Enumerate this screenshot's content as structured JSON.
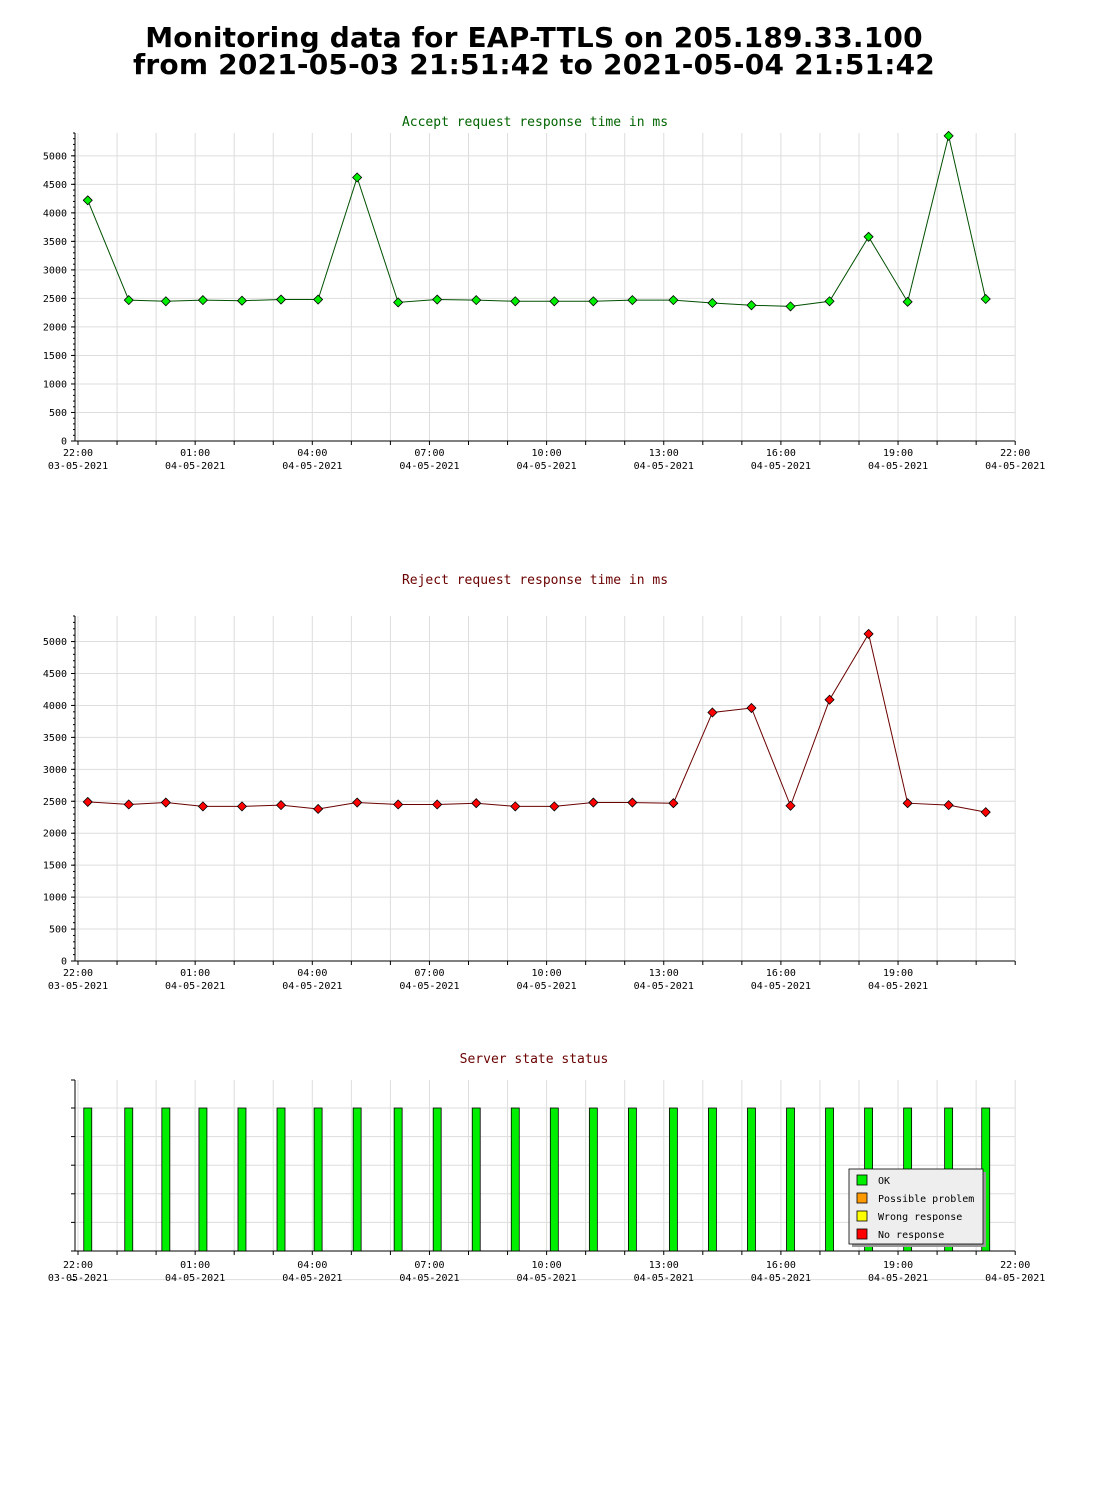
{
  "page": {
    "title_line1": "Monitoring data for EAP-TTLS on 205.189.33.100",
    "title_line2": "from 2021-05-03 21:51:42 to 2021-05-04 21:51:42"
  },
  "colors": {
    "accept_title": "#006400",
    "reject_title": "#6b0000",
    "status_title": "#6b0000",
    "accept_line": "#005000",
    "reject_line": "#6b0000",
    "ok": "#00ee00",
    "possible_problem": "#ff9900",
    "wrong_response": "#ffff00",
    "no_response": "#ff0000",
    "grid": "#dddddd"
  },
  "x_axis": {
    "tick_labels": [
      {
        "time": "22:00",
        "date": "03-05-2021"
      },
      {
        "time": "01:00",
        "date": "04-05-2021"
      },
      {
        "time": "04:00",
        "date": "04-05-2021"
      },
      {
        "time": "07:00",
        "date": "04-05-2021"
      },
      {
        "time": "10:00",
        "date": "04-05-2021"
      },
      {
        "time": "13:00",
        "date": "04-05-2021"
      },
      {
        "time": "16:00",
        "date": "04-05-2021"
      },
      {
        "time": "19:00",
        "date": "04-05-2021"
      },
      {
        "time": "22:00",
        "date": "04-05-2021"
      }
    ]
  },
  "chart_data": [
    {
      "type": "line",
      "title": "Accept request response time in ms",
      "ylim": [
        0,
        5400
      ],
      "yticks": [
        0,
        500,
        1000,
        1500,
        2000,
        2500,
        3000,
        3500,
        4000,
        4500,
        5000
      ],
      "grid": true,
      "x_hours": [
        0.25,
        1.3,
        2.25,
        3.2,
        4.2,
        5.2,
        6.15,
        7.15,
        8.2,
        9.2,
        10.2,
        11.2,
        12.2,
        13.2,
        14.2,
        15.25,
        16.25,
        17.25,
        18.25,
        19.25,
        20.25,
        21.25,
        22.3,
        23.25
      ],
      "values": [
        4220,
        2470,
        2450,
        2470,
        2460,
        2480,
        2480,
        4620,
        2430,
        2480,
        2470,
        2450,
        2450,
        2450,
        2470,
        2470,
        2420,
        2380,
        2360,
        2450,
        3580,
        2440,
        5350,
        2490
      ]
    },
    {
      "type": "line",
      "title": "Reject request response time in ms",
      "ylim": [
        0,
        5400
      ],
      "yticks": [
        0,
        500,
        1000,
        1500,
        2000,
        2500,
        3000,
        3500,
        4000,
        4500,
        5000
      ],
      "grid": true,
      "x_hours": [
        0.25,
        1.3,
        2.25,
        3.2,
        4.2,
        5.2,
        6.15,
        7.15,
        8.2,
        9.2,
        10.2,
        11.2,
        12.2,
        13.2,
        14.2,
        15.25,
        16.25,
        17.25,
        18.25,
        19.25,
        20.25,
        21.25,
        22.3,
        23.25
      ],
      "values": [
        2490,
        2450,
        2480,
        2420,
        2420,
        2440,
        2380,
        2480,
        2450,
        2450,
        2470,
        2420,
        2420,
        2480,
        2480,
        2470,
        3890,
        3960,
        2430,
        4090,
        5120,
        2470,
        2440,
        2330
      ]
    },
    {
      "type": "bar",
      "title": "Server state status",
      "x_hours": [
        0.25,
        1.3,
        2.25,
        3.2,
        4.2,
        5.2,
        6.15,
        7.15,
        8.2,
        9.2,
        10.2,
        11.2,
        12.2,
        13.2,
        14.2,
        15.25,
        16.25,
        17.25,
        18.25,
        19.25,
        20.25,
        21.25,
        22.3,
        23.25
      ],
      "states": [
        "OK",
        "OK",
        "OK",
        "OK",
        "OK",
        "OK",
        "OK",
        "OK",
        "OK",
        "OK",
        "OK",
        "OK",
        "OK",
        "OK",
        "OK",
        "OK",
        "OK",
        "OK",
        "OK",
        "OK",
        "OK",
        "OK",
        "OK",
        "OK"
      ],
      "legend": {
        "placement": "bottom-right",
        "entries": [
          {
            "label": "OK",
            "color": "#00ee00"
          },
          {
            "label": "Possible problem",
            "color": "#ff9900"
          },
          {
            "label": "Wrong response",
            "color": "#ffff00"
          },
          {
            "label": "No response",
            "color": "#ff0000"
          }
        ]
      }
    }
  ]
}
